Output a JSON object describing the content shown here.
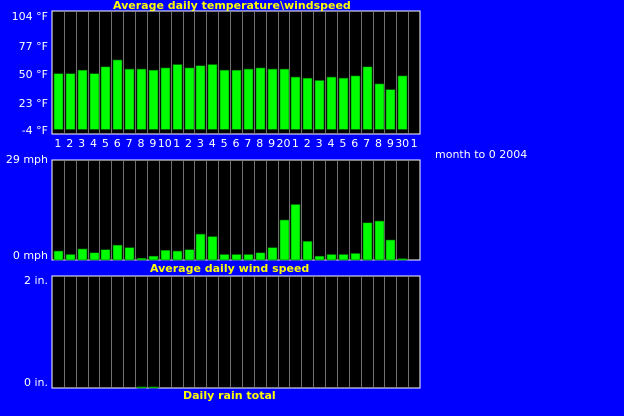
{
  "side_caption": "month to 0 2004",
  "colors": {
    "background": "#0000ff",
    "plot_background": "#000000",
    "grid": "#707070",
    "bar": "#00ff00",
    "title": "#ffff00",
    "labels": "#ffffff"
  },
  "chart_data": [
    {
      "type": "bar",
      "title": "Average daily temperature\\windspeed",
      "unit": "°F",
      "ylim": [
        -4,
        104
      ],
      "ytick_labels": [
        "104 °F",
        "77 °F",
        "50 °F",
        "23 °F",
        "-4 °F"
      ],
      "categories": [
        "1",
        "2",
        "3",
        "4",
        "5",
        "6",
        "7",
        "8",
        "9",
        "10",
        "1",
        "2",
        "3",
        "4",
        "5",
        "6",
        "7",
        "8",
        "9",
        "20",
        "1",
        "2",
        "3",
        "4",
        "5",
        "6",
        "7",
        "8",
        "9",
        "30",
        "1"
      ],
      "values": [
        49,
        49,
        52,
        49,
        55,
        61,
        53,
        53,
        52,
        54,
        57,
        54,
        56,
        57,
        52,
        52,
        53,
        54,
        53,
        53,
        46,
        45,
        43,
        46,
        45,
        47,
        55,
        40,
        35,
        47,
        null
      ],
      "grid": true
    },
    {
      "type": "bar",
      "title": "Average daily wind speed",
      "unit": "mph",
      "ylim": [
        0,
        29
      ],
      "ytick_labels": [
        "29 mph",
        "0 mph"
      ],
      "categories": [
        "1",
        "2",
        "3",
        "4",
        "5",
        "6",
        "7",
        "8",
        "9",
        "10",
        "1",
        "2",
        "3",
        "4",
        "5",
        "6",
        "7",
        "8",
        "9",
        "20",
        "1",
        "2",
        "3",
        "4",
        "5",
        "6",
        "7",
        "8",
        "9",
        "30",
        "1"
      ],
      "values": [
        2.6,
        1.6,
        3.2,
        2.1,
        3.0,
        4.3,
        3.6,
        0.5,
        1.1,
        2.8,
        2.6,
        3.0,
        7.5,
        6.8,
        1.6,
        1.6,
        1.6,
        2.1,
        3.6,
        11.6,
        16.1,
        5.4,
        1.1,
        1.6,
        1.6,
        1.9,
        10.8,
        11.3,
        5.8,
        0.4,
        null
      ],
      "grid": true
    },
    {
      "type": "bar",
      "title": "Daily rain total",
      "unit": "in.",
      "ylim": [
        0,
        2
      ],
      "ytick_labels": [
        "2 in.",
        "0 in."
      ],
      "categories": [
        "1",
        "2",
        "3",
        "4",
        "5",
        "6",
        "7",
        "8",
        "9",
        "10",
        "1",
        "2",
        "3",
        "4",
        "5",
        "6",
        "7",
        "8",
        "9",
        "20",
        "1",
        "2",
        "3",
        "4",
        "5",
        "6",
        "7",
        "8",
        "9",
        "30",
        "1"
      ],
      "values": [
        0,
        0,
        0,
        0,
        0,
        0,
        0,
        0.02,
        0.02,
        0,
        0,
        0,
        0,
        0,
        0,
        0,
        0,
        0,
        0,
        0,
        0,
        0,
        0,
        0,
        0,
        0,
        0,
        0,
        0,
        0,
        null
      ],
      "grid": true
    }
  ]
}
